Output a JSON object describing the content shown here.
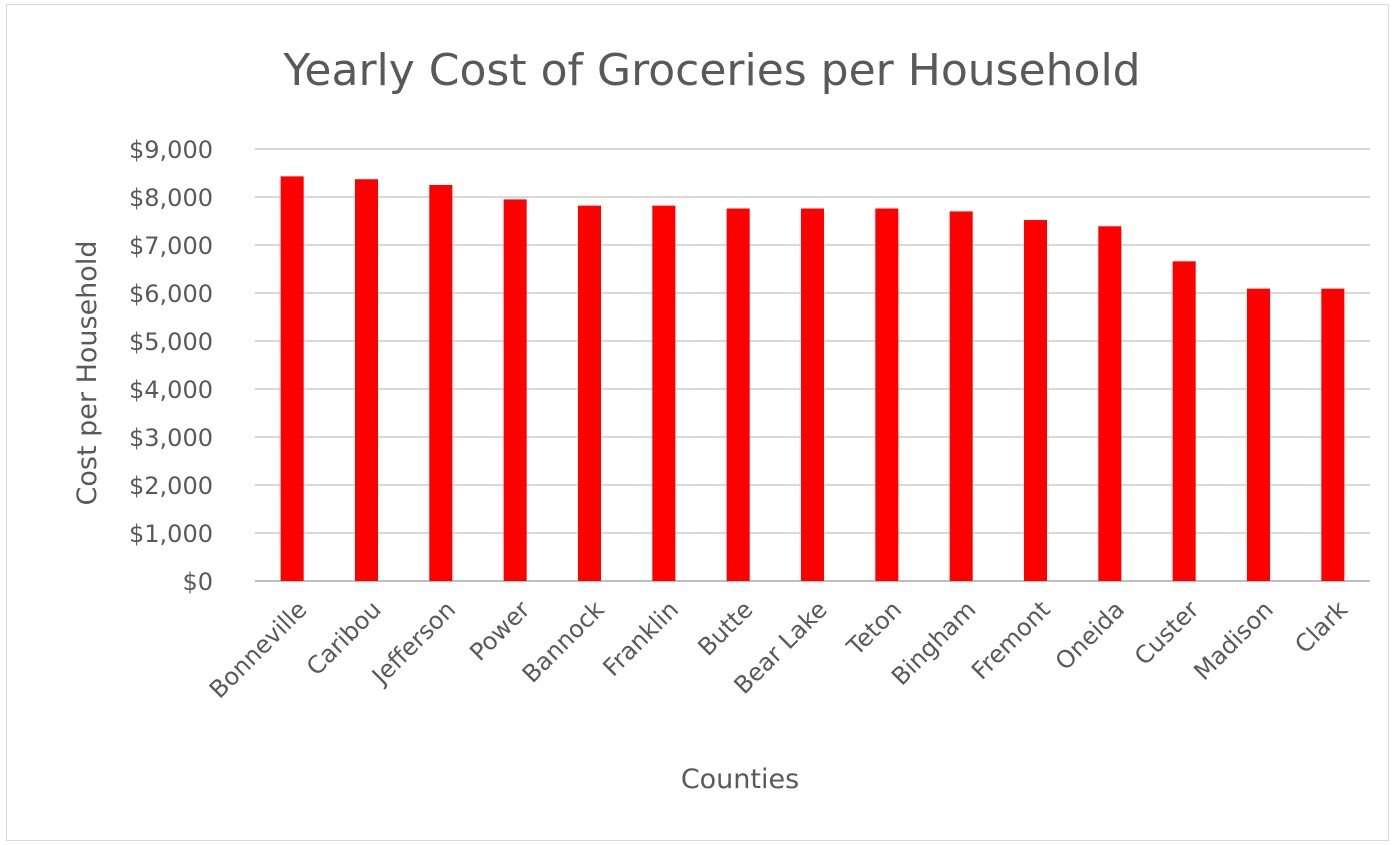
{
  "chart_data": {
    "type": "bar",
    "title": "Yearly Cost of Groceries per Household",
    "xlabel": "Counties",
    "ylabel": "Cost per Household",
    "categories": [
      "Bonneville",
      "Caribou",
      "Jefferson",
      "Power",
      "Bannock",
      "Franklin",
      "Butte",
      "Bear Lake",
      "Teton",
      "Bingham",
      "Fremont",
      "Oneida",
      "Custer",
      "Madison",
      "Clark"
    ],
    "values": [
      8430,
      8370,
      8250,
      7950,
      7820,
      7820,
      7760,
      7760,
      7760,
      7700,
      7520,
      7390,
      6660,
      6090,
      6090
    ],
    "ylim": [
      0,
      9000
    ],
    "yticks": [
      0,
      1000,
      2000,
      3000,
      4000,
      5000,
      6000,
      7000,
      8000,
      9000
    ],
    "ytick_labels": [
      "$0",
      "$1,000",
      "$2,000",
      "$3,000",
      "$4,000",
      "$5,000",
      "$6,000",
      "$7,000",
      "$8,000",
      "$9,000"
    ],
    "grid": true,
    "legend": "none",
    "bar_color": "#ff0000"
  }
}
